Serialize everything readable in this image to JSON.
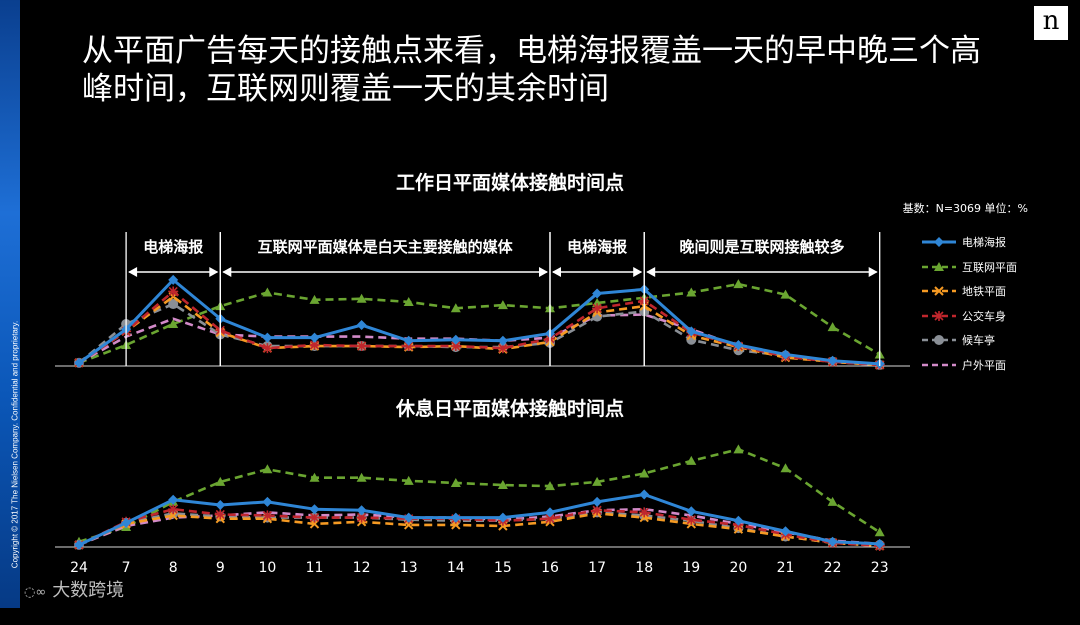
{
  "page": {
    "title": "从平面广告每天的接触点来看，电梯海报覆盖一天的早中晚三个高峰时间，互联网则覆盖一天的其余时间",
    "copyright": "Copyright © 2017 The Nielsen Company. Confidential and proprietary.",
    "logo": "n",
    "watermark": "大数跨境",
    "base_note": "基数：N=3069   单位：%"
  },
  "annotations": [
    {
      "label": "电梯海报",
      "from": "7",
      "to": "9"
    },
    {
      "label": "互联网平面媒体是白天主要接触的媒体",
      "from": "9",
      "to": "16"
    },
    {
      "label": "电梯海报",
      "from": "16",
      "to": "18"
    },
    {
      "label": "晚间则是互联网接触较多",
      "from": "18",
      "to": "23"
    }
  ],
  "legend": [
    {
      "name": "电梯海报",
      "color": "#2f86d6",
      "marker": "diamond",
      "dash": ""
    },
    {
      "name": "互联网平面",
      "color": "#6aa531",
      "marker": "triangle",
      "dash": "8,5"
    },
    {
      "name": "地铁平面",
      "color": "#f59a23",
      "marker": "x",
      "dash": "8,5"
    },
    {
      "name": "公交车身",
      "color": "#c0262d",
      "marker": "star",
      "dash": "8,5"
    },
    {
      "name": "候车亭",
      "color": "#8a8f96",
      "marker": "circle",
      "dash": "8,5"
    },
    {
      "name": "户外平面",
      "color": "#d28ac8",
      "marker": "none",
      "dash": "8,5"
    }
  ],
  "chart_data": [
    {
      "type": "line",
      "title": "工作日平面媒体接触时间点",
      "categories": [
        "24",
        "7",
        "8",
        "9",
        "10",
        "11",
        "12",
        "13",
        "14",
        "15",
        "16",
        "17",
        "18",
        "19",
        "20",
        "21",
        "22",
        "23"
      ],
      "ylim": [
        0,
        100
      ],
      "series": [
        {
          "name": "电梯海报",
          "values": [
            3,
            35,
            82,
            45,
            27,
            27,
            39,
            24,
            25,
            24,
            31,
            69,
            73,
            33,
            20,
            11,
            5,
            2
          ]
        },
        {
          "name": "互联网平面",
          "values": [
            3,
            20,
            40,
            57,
            70,
            63,
            64,
            61,
            55,
            58,
            55,
            60,
            65,
            70,
            78,
            68,
            37,
            11
          ]
        },
        {
          "name": "地铁平面",
          "values": [
            3,
            33,
            66,
            32,
            17,
            19,
            19,
            18,
            19,
            16,
            23,
            51,
            57,
            29,
            18,
            8,
            4,
            1
          ]
        },
        {
          "name": "公交车身",
          "values": [
            3,
            33,
            71,
            34,
            17,
            20,
            19,
            19,
            19,
            17,
            26,
            55,
            62,
            32,
            19,
            9,
            4,
            1
          ]
        },
        {
          "name": "候车亭",
          "values": [
            3,
            40,
            59,
            30,
            19,
            19,
            19,
            19,
            18,
            18,
            22,
            47,
            52,
            25,
            15,
            10,
            4,
            1
          ]
        },
        {
          "name": "户外平面",
          "values": [
            3,
            28,
            45,
            30,
            28,
            28,
            28,
            26,
            26,
            24,
            27,
            48,
            49,
            35,
            19,
            10,
            4,
            1
          ]
        }
      ]
    },
    {
      "type": "line",
      "title": "休息日平面媒体接触时间点",
      "categories": [
        "24",
        "7",
        "8",
        "9",
        "10",
        "11",
        "12",
        "13",
        "14",
        "15",
        "16",
        "17",
        "18",
        "19",
        "20",
        "21",
        "22",
        "23"
      ],
      "ylim": [
        0,
        100
      ],
      "series": [
        {
          "name": "电梯海报",
          "values": [
            2,
            23,
            45,
            40,
            43,
            36,
            35,
            28,
            28,
            28,
            33,
            43,
            50,
            34,
            25,
            15,
            5,
            3
          ]
        },
        {
          "name": "互联网平面",
          "values": [
            5,
            19,
            43,
            62,
            74,
            66,
            66,
            63,
            61,
            59,
            58,
            62,
            70,
            82,
            93,
            75,
            43,
            14
          ]
        },
        {
          "name": "地铁平面",
          "values": [
            2,
            22,
            30,
            27,
            27,
            22,
            24,
            21,
            21,
            20,
            24,
            32,
            28,
            22,
            17,
            10,
            4,
            1
          ]
        },
        {
          "name": "公交车身",
          "values": [
            2,
            24,
            36,
            31,
            30,
            28,
            28,
            27,
            27,
            25,
            27,
            35,
            33,
            26,
            21,
            12,
            4,
            1
          ]
        },
        {
          "name": "候车亭",
          "values": [
            2,
            23,
            32,
            29,
            28,
            28,
            28,
            26,
            25,
            25,
            27,
            33,
            30,
            25,
            18,
            10,
            4,
            2
          ]
        },
        {
          "name": "户外平面",
          "values": [
            2,
            20,
            28,
            30,
            33,
            30,
            31,
            28,
            28,
            26,
            29,
            35,
            36,
            30,
            22,
            14,
            6,
            3
          ]
        }
      ]
    }
  ]
}
